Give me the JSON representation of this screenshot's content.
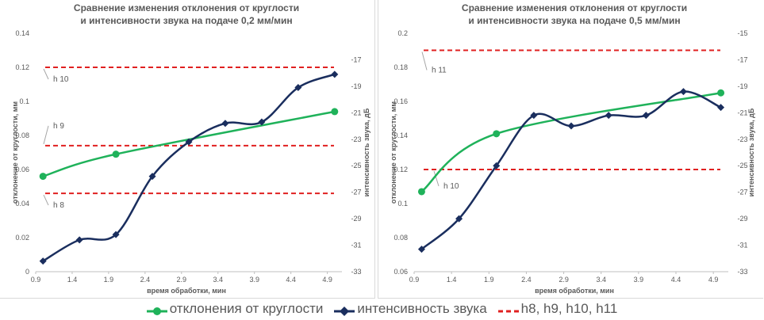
{
  "chart_data": [
    {
      "type": "line",
      "title_lines": [
        "Сравнение изменения отклонения от круглости",
        "и интенсивности звука на подаче 0,2 мм/мин"
      ],
      "xlabel": "время обработки, мин",
      "ylabel": "отклонение от круглости, мм",
      "y2label": "интенсивность звука, дБ",
      "xlim": [
        0.9,
        5.1
      ],
      "x_ticks": [
        "0.9",
        "1.4",
        "1.9",
        "2.4",
        "2.9",
        "3.4",
        "3.9",
        "4.4",
        "4.9"
      ],
      "ylim": [
        0,
        0.14
      ],
      "y_ticks": [
        "0",
        "0.02",
        "0.04",
        "0.06",
        "0.08",
        "0.1",
        "0.12",
        "0.14"
      ],
      "y2lim": [
        -33,
        -15
      ],
      "y2_ticks": [
        "-33",
        "-31",
        "-29",
        "-27",
        "-25",
        "-23",
        "-21",
        "-19",
        "-17"
      ],
      "series": [
        {
          "name": "отклонения от круглости",
          "axis": "left",
          "color": "#1fb25a",
          "marker": "circle",
          "x": [
            1.0,
            2.0,
            5.0
          ],
          "y": [
            0.056,
            0.069,
            0.094
          ]
        },
        {
          "name": "интенсивность звука",
          "axis": "right",
          "color": "#1a2e5e",
          "marker": "diamond",
          "x": [
            1.0,
            1.5,
            2.0,
            2.5,
            3.0,
            3.5,
            4.0,
            4.5,
            5.0
          ],
          "y": [
            -32.2,
            -30.6,
            -30.2,
            -25.8,
            -23.2,
            -21.8,
            -21.7,
            -19.1,
            -18.1
          ]
        }
      ],
      "reference_lines": [
        {
          "label": "h 10",
          "value": 0.12
        },
        {
          "label": "h 9",
          "value": 0.074
        },
        {
          "label": "h 8",
          "value": 0.046
        }
      ]
    },
    {
      "type": "line",
      "title_lines": [
        "Сравнение изменения отклонения от круглости",
        "и интенсивности звука на подаче 0,5 мм/мин"
      ],
      "xlabel": "время обработки, мин",
      "ylabel": "отклонение от круглости, мм",
      "y2label": "интенсивность звука, дБ",
      "xlim": [
        0.9,
        5.1
      ],
      "x_ticks": [
        "0.9",
        "1.4",
        "1.9",
        "2.4",
        "2.9",
        "3.4",
        "3.9",
        "4.4",
        "4.9"
      ],
      "ylim": [
        0.06,
        0.2
      ],
      "y_ticks": [
        "0.06",
        "0.08",
        "0.1",
        "0.12",
        "0.14",
        "0.16",
        "0.18",
        "0.2"
      ],
      "y2lim": [
        -33,
        -15
      ],
      "y2_ticks": [
        "-33",
        "-31",
        "-29",
        "-27",
        "-25",
        "-23",
        "-21",
        "-19",
        "-17",
        "-15"
      ],
      "series": [
        {
          "name": "отклонения от круглости",
          "axis": "left",
          "color": "#1fb25a",
          "marker": "circle",
          "x": [
            1.0,
            2.0,
            5.0
          ],
          "y": [
            0.107,
            0.141,
            0.165
          ]
        },
        {
          "name": "интенсивность звука",
          "axis": "right",
          "color": "#1a2e5e",
          "marker": "diamond",
          "x": [
            1.0,
            1.5,
            2.0,
            2.5,
            3.0,
            3.5,
            4.0,
            4.5,
            5.0
          ],
          "y": [
            -31.3,
            -29.0,
            -25.0,
            -21.2,
            -22.0,
            -21.2,
            -21.2,
            -19.4,
            -20.6
          ]
        }
      ],
      "reference_lines": [
        {
          "label": "h 11",
          "value": 0.19
        },
        {
          "label": "h 10",
          "value": 0.12
        }
      ]
    }
  ],
  "legend": {
    "items": [
      {
        "label": "отклонения от круглости",
        "color": "#1fb25a",
        "icon": "green-circle-line"
      },
      {
        "label": "интенсивность звука",
        "color": "#1a2e5e",
        "icon": "navy-diamond-line"
      },
      {
        "label": "h8, h9, h10, h11",
        "color": "#e02020",
        "icon": "red-dashed-line"
      }
    ]
  }
}
